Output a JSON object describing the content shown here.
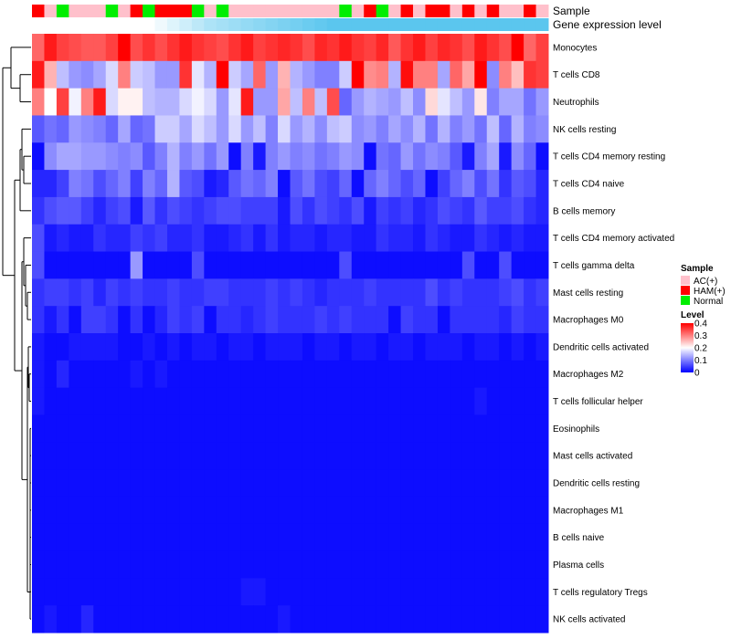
{
  "chart_data": {
    "type": "heatmap",
    "annotation_titles": {
      "sample": "Sample",
      "gene": "Gene expression level"
    },
    "samples": [
      "HAM(+)",
      "AC(+)",
      "Normal",
      "AC(+)",
      "AC(+)",
      "AC(+)",
      "Normal",
      "AC(+)",
      "HAM(+)",
      "Normal",
      "HAM(+)",
      "HAM(+)",
      "HAM(+)",
      "Normal",
      "AC(+)",
      "Normal",
      "AC(+)",
      "AC(+)",
      "AC(+)",
      "AC(+)",
      "AC(+)",
      "AC(+)",
      "AC(+)",
      "AC(+)",
      "AC(+)",
      "Normal",
      "AC(+)",
      "HAM(+)",
      "Normal",
      "AC(+)",
      "HAM(+)",
      "AC(+)",
      "HAM(+)",
      "HAM(+)",
      "AC(+)",
      "HAM(+)",
      "AC(+)",
      "HAM(+)",
      "AC(+)",
      "AC(+)",
      "HAM(+)",
      "AC(+)"
    ],
    "gene_levels": [
      0.0,
      0.0,
      0.0,
      0.0,
      0.0,
      0.0,
      0.0,
      0.0,
      0.0,
      0.0,
      0.1,
      0.2,
      0.3,
      0.4,
      0.5,
      0.55,
      0.6,
      0.65,
      0.7,
      0.75,
      0.8,
      0.85,
      0.9,
      0.95,
      1.0,
      1.0,
      1.0,
      1.0,
      1.0,
      1.0,
      1.0,
      1.0,
      1.0,
      1.0,
      1.0,
      1.0,
      1.0,
      1.0,
      1.0,
      1.0,
      1.0,
      1.0
    ],
    "rows": [
      "Monocytes",
      "T cells CD8",
      "Neutrophils",
      "NK cells resting",
      "T cells CD4 memory resting",
      "T cells CD4 naive",
      "B cells memory",
      "T cells CD4 memory activated",
      "T cells gamma delta",
      "Mast cells resting",
      "Macrophages M0",
      "Dendritic cells activated",
      "Macrophages M2",
      "T cells follicular helper",
      "Eosinophils",
      "Mast cells activated",
      "Dendritic cells resting",
      "Macrophages M1",
      "B cells naive",
      "Plasma cells",
      "T cells regulatory  Tregs",
      "NK cells activated"
    ],
    "values": [
      [
        0.32,
        0.38,
        0.35,
        0.34,
        0.33,
        0.33,
        0.35,
        0.4,
        0.34,
        0.36,
        0.34,
        0.36,
        0.38,
        0.36,
        0.35,
        0.34,
        0.36,
        0.38,
        0.35,
        0.36,
        0.37,
        0.36,
        0.34,
        0.37,
        0.36,
        0.38,
        0.36,
        0.35,
        0.37,
        0.33,
        0.36,
        0.38,
        0.35,
        0.37,
        0.36,
        0.34,
        0.38,
        0.36,
        0.34,
        0.4,
        0.32,
        0.35
      ],
      [
        0.38,
        0.26,
        0.15,
        0.12,
        0.11,
        0.13,
        0.17,
        0.3,
        0.16,
        0.15,
        0.12,
        0.12,
        0.36,
        0.18,
        0.14,
        0.4,
        0.16,
        0.13,
        0.32,
        0.12,
        0.26,
        0.14,
        0.12,
        0.1,
        0.1,
        0.16,
        0.4,
        0.29,
        0.3,
        0.14,
        0.39,
        0.3,
        0.3,
        0.13,
        0.32,
        0.27,
        0.41,
        0.11,
        0.3,
        0.25,
        0.36,
        0.35
      ],
      [
        0.3,
        0.2,
        0.35,
        0.19,
        0.3,
        0.38,
        0.17,
        0.21,
        0.21,
        0.15,
        0.14,
        0.14,
        0.17,
        0.19,
        0.17,
        0.12,
        0.18,
        0.38,
        0.12,
        0.12,
        0.27,
        0.15,
        0.3,
        0.15,
        0.34,
        0.08,
        0.12,
        0.14,
        0.13,
        0.12,
        0.15,
        0.11,
        0.23,
        0.18,
        0.15,
        0.12,
        0.22,
        0.1,
        0.13,
        0.13,
        0.09,
        0.12
      ],
      [
        0.07,
        0.09,
        0.08,
        0.12,
        0.11,
        0.1,
        0.08,
        0.13,
        0.08,
        0.09,
        0.16,
        0.16,
        0.13,
        0.17,
        0.15,
        0.12,
        0.17,
        0.12,
        0.15,
        0.1,
        0.17,
        0.12,
        0.14,
        0.11,
        0.15,
        0.16,
        0.11,
        0.12,
        0.1,
        0.13,
        0.11,
        0.14,
        0.09,
        0.14,
        0.1,
        0.12,
        0.09,
        0.15,
        0.08,
        0.14,
        0.1,
        0.11
      ],
      [
        0.01,
        0.11,
        0.13,
        0.13,
        0.12,
        0.12,
        0.11,
        0.1,
        0.11,
        0.07,
        0.1,
        0.14,
        0.1,
        0.12,
        0.09,
        0.12,
        0.01,
        0.1,
        0.02,
        0.1,
        0.12,
        0.1,
        0.11,
        0.09,
        0.1,
        0.12,
        0.11,
        0.01,
        0.09,
        0.08,
        0.12,
        0.09,
        0.11,
        0.1,
        0.07,
        0.02,
        0.1,
        0.13,
        0.02,
        0.11,
        0.08,
        0.01
      ],
      [
        0.03,
        0.03,
        0.05,
        0.1,
        0.09,
        0.06,
        0.08,
        0.1,
        0.05,
        0.1,
        0.08,
        0.14,
        0.07,
        0.06,
        0.02,
        0.03,
        0.07,
        0.09,
        0.08,
        0.1,
        0.01,
        0.07,
        0.09,
        0.06,
        0.05,
        0.08,
        0.01,
        0.08,
        0.1,
        0.08,
        0.06,
        0.08,
        0.01,
        0.05,
        0.08,
        0.1,
        0.06,
        0.09,
        0.04,
        0.07,
        0.06,
        0.03
      ],
      [
        0.04,
        0.06,
        0.07,
        0.07,
        0.05,
        0.03,
        0.05,
        0.06,
        0.02,
        0.07,
        0.04,
        0.06,
        0.05,
        0.04,
        0.05,
        0.06,
        0.06,
        0.05,
        0.05,
        0.05,
        0.02,
        0.06,
        0.04,
        0.06,
        0.05,
        0.04,
        0.06,
        0.02,
        0.05,
        0.04,
        0.05,
        0.03,
        0.04,
        0.06,
        0.05,
        0.04,
        0.07,
        0.05,
        0.05,
        0.06,
        0.04,
        0.03
      ],
      [
        0.06,
        0.02,
        0.03,
        0.02,
        0.02,
        0.04,
        0.03,
        0.03,
        0.05,
        0.04,
        0.05,
        0.03,
        0.03,
        0.04,
        0.02,
        0.02,
        0.03,
        0.04,
        0.02,
        0.04,
        0.02,
        0.03,
        0.03,
        0.02,
        0.03,
        0.03,
        0.02,
        0.02,
        0.04,
        0.03,
        0.03,
        0.02,
        0.04,
        0.03,
        0.02,
        0.02,
        0.04,
        0.03,
        0.02,
        0.03,
        0.02,
        0.02
      ],
      [
        0.06,
        0.01,
        0.01,
        0.01,
        0.01,
        0.01,
        0.01,
        0.01,
        0.12,
        0.01,
        0.01,
        0.01,
        0.01,
        0.06,
        0.01,
        0.01,
        0.01,
        0.01,
        0.01,
        0.01,
        0.01,
        0.01,
        0.01,
        0.01,
        0.01,
        0.06,
        0.01,
        0.01,
        0.01,
        0.01,
        0.01,
        0.01,
        0.01,
        0.01,
        0.01,
        0.06,
        0.01,
        0.01,
        0.06,
        0.01,
        0.01,
        0.01
      ],
      [
        0.04,
        0.05,
        0.05,
        0.04,
        0.05,
        0.03,
        0.05,
        0.04,
        0.05,
        0.04,
        0.04,
        0.05,
        0.04,
        0.04,
        0.05,
        0.05,
        0.04,
        0.04,
        0.04,
        0.05,
        0.04,
        0.05,
        0.04,
        0.03,
        0.04,
        0.04,
        0.04,
        0.05,
        0.04,
        0.04,
        0.04,
        0.04,
        0.06,
        0.04,
        0.05,
        0.04,
        0.04,
        0.04,
        0.05,
        0.06,
        0.04,
        0.05
      ],
      [
        0.04,
        0.02,
        0.04,
        0.01,
        0.05,
        0.05,
        0.04,
        0.01,
        0.04,
        0.01,
        0.03,
        0.05,
        0.04,
        0.05,
        0.01,
        0.04,
        0.04,
        0.03,
        0.04,
        0.05,
        0.04,
        0.04,
        0.04,
        0.05,
        0.04,
        0.05,
        0.04,
        0.04,
        0.04,
        0.01,
        0.05,
        0.04,
        0.04,
        0.01,
        0.04,
        0.04,
        0.04,
        0.04,
        0.03,
        0.05,
        0.04,
        0.04
      ],
      [
        0.02,
        0.01,
        0.01,
        0.02,
        0.02,
        0.02,
        0.02,
        0.01,
        0.01,
        0.02,
        0.01,
        0.02,
        0.01,
        0.02,
        0.02,
        0.01,
        0.02,
        0.02,
        0.01,
        0.02,
        0.02,
        0.02,
        0.01,
        0.02,
        0.02,
        0.01,
        0.02,
        0.02,
        0.01,
        0.02,
        0.02,
        0.01,
        0.02,
        0.02,
        0.02,
        0.01,
        0.02,
        0.02,
        0.01,
        0.02,
        0.01,
        0.02
      ],
      [
        0.02,
        0.01,
        0.03,
        0.01,
        0.01,
        0.01,
        0.01,
        0.01,
        0.02,
        0.01,
        0.02,
        0.01,
        0.01,
        0.01,
        0.01,
        0.01,
        0.01,
        0.01,
        0.01,
        0.01,
        0.01,
        0.01,
        0.01,
        0.01,
        0.01,
        0.01,
        0.01,
        0.01,
        0.01,
        0.01,
        0.01,
        0.01,
        0.01,
        0.01,
        0.01,
        0.01,
        0.01,
        0.01,
        0.01,
        0.01,
        0.01,
        0.01
      ],
      [
        0.02,
        0.01,
        0.01,
        0.01,
        0.01,
        0.01,
        0.01,
        0.01,
        0.01,
        0.01,
        0.01,
        0.01,
        0.01,
        0.01,
        0.01,
        0.01,
        0.01,
        0.01,
        0.01,
        0.01,
        0.01,
        0.01,
        0.01,
        0.01,
        0.01,
        0.01,
        0.01,
        0.01,
        0.01,
        0.01,
        0.01,
        0.01,
        0.01,
        0.01,
        0.01,
        0.01,
        0.02,
        0.01,
        0.01,
        0.01,
        0.01,
        0.01
      ],
      [
        0.01,
        0.01,
        0.01,
        0.01,
        0.01,
        0.01,
        0.01,
        0.01,
        0.01,
        0.01,
        0.01,
        0.01,
        0.01,
        0.01,
        0.01,
        0.01,
        0.01,
        0.01,
        0.01,
        0.01,
        0.01,
        0.01,
        0.01,
        0.01,
        0.01,
        0.01,
        0.01,
        0.01,
        0.01,
        0.01,
        0.01,
        0.01,
        0.01,
        0.01,
        0.01,
        0.01,
        0.01,
        0.01,
        0.01,
        0.01,
        0.01,
        0.01
      ],
      [
        0.01,
        0.01,
        0.01,
        0.01,
        0.01,
        0.01,
        0.01,
        0.01,
        0.01,
        0.01,
        0.01,
        0.01,
        0.01,
        0.01,
        0.01,
        0.01,
        0.01,
        0.01,
        0.01,
        0.01,
        0.01,
        0.01,
        0.01,
        0.01,
        0.01,
        0.01,
        0.01,
        0.01,
        0.01,
        0.01,
        0.01,
        0.01,
        0.01,
        0.01,
        0.01,
        0.01,
        0.01,
        0.01,
        0.01,
        0.01,
        0.01,
        0.01
      ],
      [
        0.01,
        0.01,
        0.01,
        0.01,
        0.01,
        0.01,
        0.01,
        0.01,
        0.01,
        0.01,
        0.01,
        0.01,
        0.01,
        0.01,
        0.01,
        0.01,
        0.01,
        0.01,
        0.01,
        0.01,
        0.01,
        0.01,
        0.01,
        0.01,
        0.01,
        0.01,
        0.01,
        0.01,
        0.01,
        0.01,
        0.01,
        0.01,
        0.01,
        0.01,
        0.01,
        0.01,
        0.01,
        0.01,
        0.01,
        0.01,
        0.01,
        0.01
      ],
      [
        0.01,
        0.01,
        0.01,
        0.01,
        0.01,
        0.01,
        0.01,
        0.01,
        0.01,
        0.01,
        0.01,
        0.01,
        0.01,
        0.01,
        0.01,
        0.01,
        0.01,
        0.01,
        0.01,
        0.01,
        0.01,
        0.01,
        0.01,
        0.01,
        0.01,
        0.01,
        0.01,
        0.01,
        0.01,
        0.01,
        0.01,
        0.01,
        0.01,
        0.01,
        0.01,
        0.01,
        0.01,
        0.01,
        0.01,
        0.01,
        0.01,
        0.01
      ],
      [
        0.01,
        0.01,
        0.01,
        0.01,
        0.01,
        0.01,
        0.01,
        0.01,
        0.01,
        0.01,
        0.01,
        0.01,
        0.01,
        0.01,
        0.01,
        0.01,
        0.01,
        0.01,
        0.01,
        0.01,
        0.01,
        0.01,
        0.01,
        0.01,
        0.01,
        0.01,
        0.01,
        0.01,
        0.01,
        0.01,
        0.01,
        0.01,
        0.01,
        0.01,
        0.01,
        0.01,
        0.01,
        0.01,
        0.01,
        0.01,
        0.01,
        0.01
      ],
      [
        0.01,
        0.01,
        0.01,
        0.01,
        0.01,
        0.01,
        0.01,
        0.01,
        0.01,
        0.01,
        0.01,
        0.01,
        0.01,
        0.01,
        0.01,
        0.01,
        0.01,
        0.01,
        0.01,
        0.01,
        0.01,
        0.01,
        0.01,
        0.01,
        0.01,
        0.01,
        0.01,
        0.01,
        0.01,
        0.01,
        0.01,
        0.01,
        0.01,
        0.01,
        0.01,
        0.01,
        0.01,
        0.01,
        0.01,
        0.01,
        0.01,
        0.01
      ],
      [
        0.01,
        0.01,
        0.01,
        0.01,
        0.01,
        0.01,
        0.01,
        0.01,
        0.01,
        0.01,
        0.01,
        0.01,
        0.01,
        0.01,
        0.01,
        0.01,
        0.01,
        0.02,
        0.02,
        0.01,
        0.01,
        0.01,
        0.01,
        0.01,
        0.01,
        0.01,
        0.01,
        0.01,
        0.01,
        0.01,
        0.01,
        0.01,
        0.01,
        0.01,
        0.01,
        0.01,
        0.01,
        0.01,
        0.01,
        0.01,
        0.01,
        0.01
      ],
      [
        0.01,
        0.02,
        0.01,
        0.01,
        0.03,
        0.01,
        0.01,
        0.01,
        0.01,
        0.01,
        0.01,
        0.01,
        0.01,
        0.01,
        0.01,
        0.01,
        0.01,
        0.01,
        0.01,
        0.01,
        0.02,
        0.01,
        0.01,
        0.01,
        0.01,
        0.01,
        0.01,
        0.01,
        0.01,
        0.01,
        0.01,
        0.01,
        0.01,
        0.01,
        0.01,
        0.01,
        0.01,
        0.01,
        0.01,
        0.01,
        0.01,
        0.01
      ]
    ],
    "legend": {
      "sample_title": "Sample",
      "sample_items": [
        {
          "label": "AC(+)",
          "color": "#ffc0cb"
        },
        {
          "label": "HAM(+)",
          "color": "#ff0000"
        },
        {
          "label": "Normal",
          "color": "#00ee00"
        }
      ],
      "level_title": "Level",
      "level_ticks": [
        "0.4",
        "0.3",
        "0.2",
        "0.1",
        "0"
      ],
      "level_range": [
        0,
        0.4
      ]
    },
    "colors": {
      "low": "#0000ff",
      "mid": "#ffffff",
      "high": "#ff0000",
      "gene_low": "#ffffff",
      "gene_high": "#5bc6ee"
    }
  }
}
